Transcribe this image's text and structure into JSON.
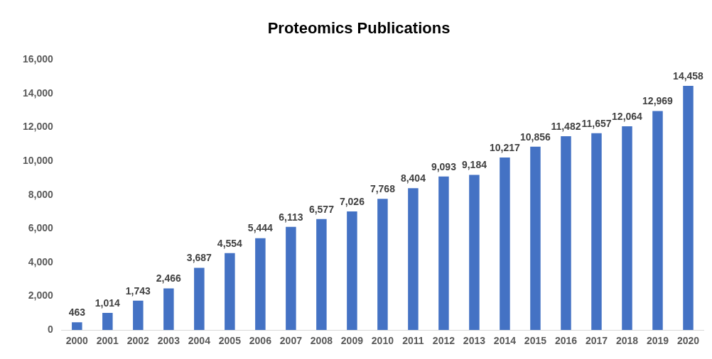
{
  "chart_data": {
    "type": "bar",
    "title": "Proteomics Publications",
    "categories": [
      "2000",
      "2001",
      "2002",
      "2003",
      "2004",
      "2005",
      "2006",
      "2007",
      "2008",
      "2009",
      "2010",
      "2011",
      "2012",
      "2013",
      "2014",
      "2015",
      "2016",
      "2017",
      "2018",
      "2019",
      "2020"
    ],
    "values": [
      463,
      1014,
      1743,
      2466,
      3687,
      4554,
      5444,
      6113,
      6577,
      7026,
      7768,
      8404,
      9093,
      9184,
      10217,
      10856,
      11482,
      11657,
      12064,
      12969,
      14458
    ],
    "color": "#4472c4",
    "ylim": [
      0,
      16000
    ],
    "yticks": [
      {
        "value": 0,
        "label": "0"
      },
      {
        "value": 2000,
        "label": "2,000"
      },
      {
        "value": 4000,
        "label": "4,000"
      },
      {
        "value": 6000,
        "label": "6,000"
      },
      {
        "value": 8000,
        "label": "8,000"
      },
      {
        "value": 10000,
        "label": "10,000"
      },
      {
        "value": 12000,
        "label": "12,000"
      },
      {
        "value": 14000,
        "label": "14,000"
      },
      {
        "value": 16000,
        "label": "16,000"
      }
    ],
    "value_labels": [
      "463",
      "1,014",
      "1,743",
      "2,466",
      "3,687",
      "4,554",
      "5,444",
      "6,113",
      "6,577",
      "7,026",
      "7,768",
      "8,404",
      "9,093",
      "9,184",
      "10,217",
      "10,856",
      "11,482",
      "11,657",
      "12,064",
      "12,969",
      "14,458"
    ],
    "grid": false,
    "legend": false
  }
}
